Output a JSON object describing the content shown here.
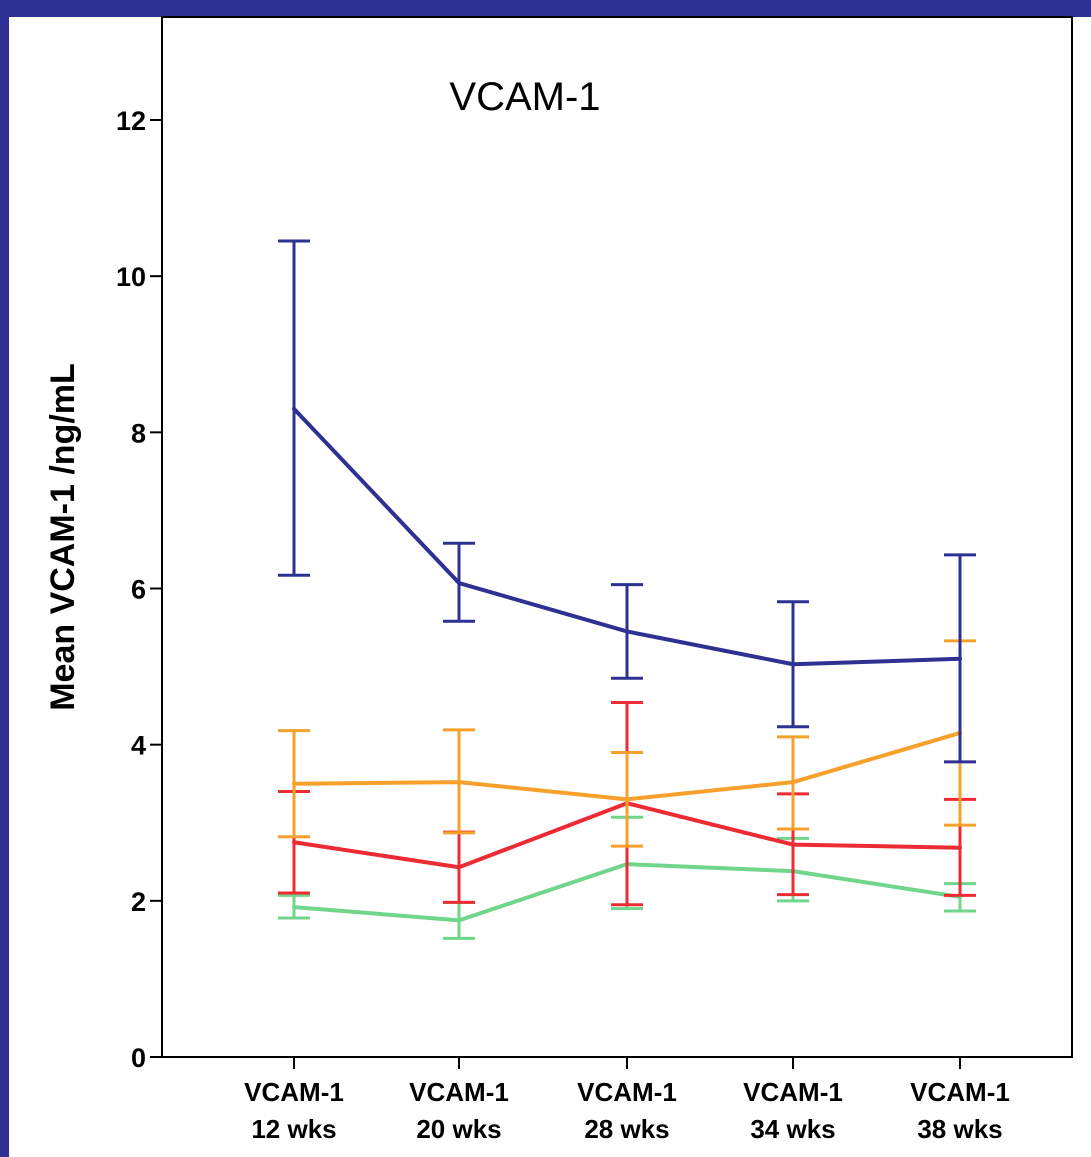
{
  "frame_color": "#2e3193",
  "chart_data": {
    "type": "line",
    "title": "VCAM-1",
    "ylabel": "Mean VCAM-1 /ng/mL",
    "xlabel": "",
    "ylim": [
      0,
      12
    ],
    "yticks": [
      0,
      2,
      4,
      6,
      8,
      10,
      12
    ],
    "categories": [
      [
        "VCAM-1",
        "12 wks"
      ],
      [
        "VCAM-1",
        "20 wks"
      ],
      [
        "VCAM-1",
        "28 wks"
      ],
      [
        "VCAM-1",
        "34 wks"
      ],
      [
        "VCAM-1",
        "38 wks"
      ]
    ],
    "grid": false,
    "legend": "none",
    "series": [
      {
        "color": "#2e3192",
        "values": [
          8.3,
          6.07,
          5.45,
          5.03,
          5.1
        ],
        "err_low": [
          6.17,
          5.58,
          4.85,
          4.23,
          3.78
        ],
        "err_high": [
          10.45,
          6.58,
          6.05,
          5.83,
          6.43
        ]
      },
      {
        "color": "#f7a02b",
        "values": [
          3.5,
          3.52,
          3.3,
          3.52,
          4.15
        ],
        "err_low": [
          2.82,
          2.87,
          2.7,
          2.92,
          2.97
        ],
        "err_high": [
          4.18,
          4.19,
          3.9,
          4.1,
          5.33
        ]
      },
      {
        "color": "#ec2b34",
        "values": [
          2.75,
          2.43,
          3.25,
          2.72,
          2.68
        ],
        "err_low": [
          2.1,
          1.98,
          1.95,
          2.08,
          2.07
        ],
        "err_high": [
          3.4,
          2.88,
          4.54,
          3.37,
          3.3
        ]
      },
      {
        "color": "#6fd68b",
        "values": [
          1.92,
          1.75,
          2.47,
          2.38,
          2.05
        ],
        "err_low": [
          1.78,
          1.52,
          1.9,
          2.0,
          1.87
        ],
        "err_high": [
          2.07,
          1.98,
          3.07,
          2.8,
          2.22
        ]
      }
    ]
  }
}
